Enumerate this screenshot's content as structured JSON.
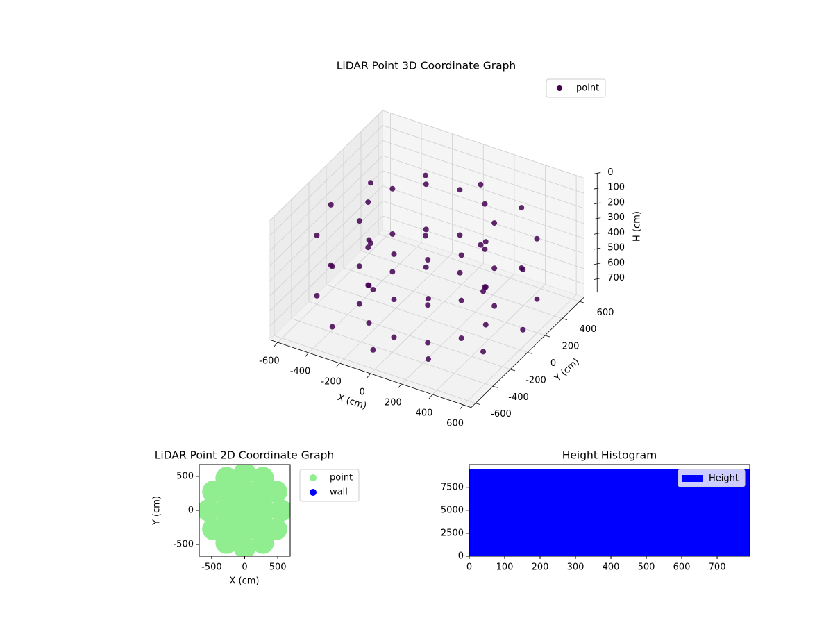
{
  "chart_data": [
    {
      "type": "scatter3d",
      "title": "LiDAR Point 3D Coordinate Graph",
      "xlabel": "X (cm)",
      "ylabel": "Y (cm)",
      "zlabel": "H (cm)",
      "xlim": [
        -650,
        650
      ],
      "ylim": [
        -650,
        650
      ],
      "zlim": [
        0,
        790
      ],
      "zinverted": true,
      "xticks": [
        -600,
        -400,
        -200,
        0,
        200,
        400,
        600
      ],
      "yticks": [
        -600,
        -400,
        -200,
        0,
        200,
        400,
        600
      ],
      "zticks": [
        0,
        100,
        200,
        300,
        400,
        500,
        600,
        700
      ],
      "legend": "upper right",
      "grid": true,
      "series": [
        {
          "name": "point",
          "color": "#440154",
          "x": [
            620,
            537,
            310,
            0,
            -310,
            -537,
            -620,
            -537,
            -310,
            0,
            310,
            537,
            620,
            537,
            310,
            0,
            -310,
            -537,
            -620,
            -537,
            -310,
            0,
            310,
            537,
            380,
            329,
            190,
            0,
            -190,
            -329,
            -380,
            -329,
            -190,
            0,
            190,
            329,
            380,
            329,
            190,
            0,
            -190,
            -329,
            -380,
            -329,
            -190,
            0,
            190,
            329,
            380,
            329,
            190,
            0,
            -190,
            -329,
            -380,
            -329,
            -190,
            0,
            190,
            329
          ],
          "y": [
            0,
            310,
            537,
            620,
            537,
            310,
            0,
            -310,
            -537,
            -620,
            -537,
            -310,
            0,
            310,
            537,
            620,
            537,
            310,
            0,
            -310,
            -537,
            -620,
            -537,
            -310,
            0,
            190,
            329,
            380,
            329,
            190,
            0,
            -190,
            -329,
            -380,
            -329,
            -190,
            0,
            190,
            329,
            380,
            329,
            190,
            0,
            -190,
            -329,
            -380,
            -329,
            -190,
            0,
            190,
            329,
            380,
            329,
            190,
            0,
            -190,
            -329,
            -380,
            -329,
            -190
          ],
          "z": [
            250,
            250,
            250,
            250,
            250,
            250,
            250,
            250,
            250,
            250,
            250,
            250,
            650,
            650,
            650,
            650,
            650,
            650,
            650,
            650,
            650,
            650,
            650,
            650,
            150,
            150,
            150,
            150,
            150,
            150,
            150,
            150,
            150,
            150,
            150,
            150,
            450,
            450,
            450,
            450,
            450,
            450,
            450,
            450,
            450,
            450,
            450,
            450,
            700,
            700,
            700,
            700,
            700,
            700,
            700,
            700,
            700,
            700,
            700,
            700
          ]
        }
      ]
    },
    {
      "type": "scatter",
      "title": "LiDAR Point 2D Coordinate Graph",
      "xlabel": "X (cm)",
      "ylabel": "Y (cm)",
      "xlim": [
        -688,
        688
      ],
      "ylim": [
        -673,
        673
      ],
      "xticks": [
        -500,
        0,
        500
      ],
      "yticks": [
        -500,
        0,
        500
      ],
      "legend": "outside right",
      "series": [
        {
          "name": "point",
          "color": "#90ee90",
          "x": [
            0,
            300,
            -300,
            0,
            0,
            212,
            -212,
            212,
            -212,
            550,
            476,
            275,
            0,
            -275,
            -476,
            -550,
            -476,
            -275,
            0,
            275,
            476
          ],
          "y": [
            0,
            0,
            0,
            300,
            -300,
            212,
            212,
            -212,
            -212,
            0,
            275,
            476,
            550,
            476,
            275,
            0,
            -275,
            -476,
            -550,
            -476,
            -275
          ]
        },
        {
          "name": "wall",
          "color": "#0000ff",
          "x": [],
          "y": []
        }
      ]
    },
    {
      "type": "histogram",
      "title": "Height Histogram",
      "xlim": [
        0,
        792
      ],
      "ylim": [
        0,
        9975
      ],
      "xticks": [
        0,
        100,
        200,
        300,
        400,
        500,
        600,
        700
      ],
      "yticks": [
        0,
        2500,
        5000,
        7500
      ],
      "legend": "upper right",
      "series": [
        {
          "name": "Height",
          "color": "#0000ff",
          "bins": [
            0,
            792
          ],
          "values": [
            9500
          ]
        }
      ]
    }
  ]
}
